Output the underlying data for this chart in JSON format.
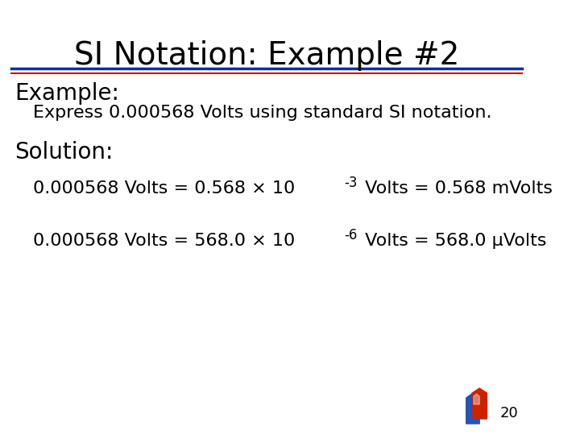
{
  "title": "SI Notation: Example #2",
  "title_fontsize": 28,
  "title_color": "#000000",
  "line1_color": "#003399",
  "line2_color": "#cc0000",
  "bg_color": "#ffffff",
  "example_label": "Example:",
  "example_label_fontsize": 20,
  "example_text": "Express 0.000568 Volts using standard SI notation.",
  "example_text_fontsize": 16,
  "solution_label": "Solution:",
  "solution_label_fontsize": 20,
  "solution_fs": 16,
  "page_number": "20"
}
